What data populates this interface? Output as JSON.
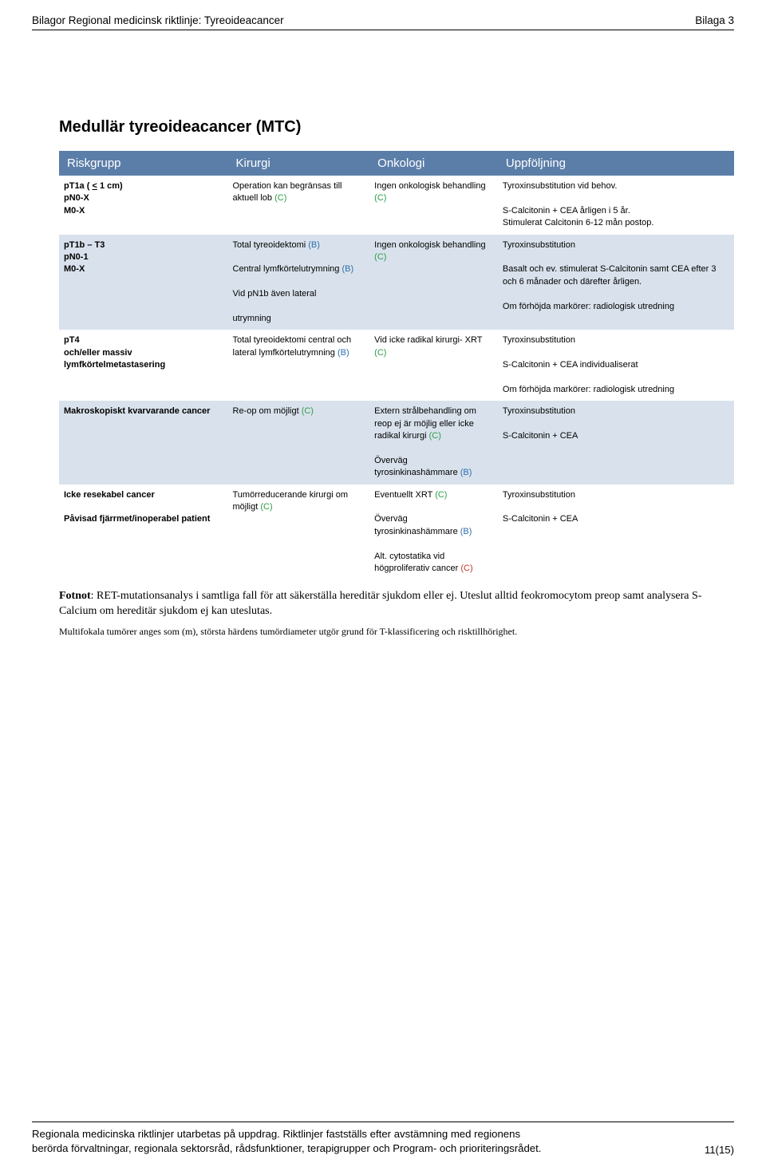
{
  "header": {
    "left": "Bilagor Regional medicinsk riktlinje: Tyreoideacancer",
    "right": "Bilaga 3"
  },
  "title": "Medullär tyreoideacancer (MTC)",
  "columns": [
    "Riskgrupp",
    "Kirurgi",
    "Onkologi",
    "Uppföljning"
  ],
  "rows": [
    {
      "risk": [
        {
          "t": "pT1a ( "
        },
        {
          "t": "<",
          "u": true
        },
        {
          "t": " 1 cm)"
        },
        {
          "br": true
        },
        {
          "t": "pN0-X"
        },
        {
          "br": true
        },
        {
          "t": "M0-X"
        }
      ],
      "kirurgi": [
        {
          "t": "Operation kan begränsas till aktuell lob "
        },
        {
          "t": "(C)",
          "cls": "c-green"
        }
      ],
      "onkologi": [
        {
          "t": "Ingen onkologisk behandling "
        },
        {
          "t": "(C)",
          "cls": "c-green"
        }
      ],
      "uppfoljning": [
        {
          "t": "Tyroxinsubstitution vid behov."
        },
        {
          "br": true
        },
        {
          "br": true
        },
        {
          "t": "S-Calcitonin + CEA årligen i 5 år."
        },
        {
          "br": true
        },
        {
          "t": "Stimulerat Calcitonin 6-12 mån postop."
        }
      ],
      "alt": false
    },
    {
      "risk": [
        {
          "t": "pT1b – T3"
        },
        {
          "br": true
        },
        {
          "t": "pN0-1"
        },
        {
          "br": true
        },
        {
          "t": "M0-X"
        }
      ],
      "kirurgi": [
        {
          "t": "Total tyreoidektomi "
        },
        {
          "t": "(B)",
          "cls": "c-blue"
        },
        {
          "br": true
        },
        {
          "br": true
        },
        {
          "t": "Central lymfkörtelutrymning "
        },
        {
          "t": "(B)",
          "cls": "c-blue"
        },
        {
          "br": true
        },
        {
          "br": true
        },
        {
          "t": "Vid pN1b även lateral"
        },
        {
          "br": true
        },
        {
          "br": true
        },
        {
          "t": "utrymning"
        }
      ],
      "onkologi": [
        {
          "t": "Ingen onkologisk behandling "
        },
        {
          "t": "(C)",
          "cls": "c-green"
        }
      ],
      "uppfoljning": [
        {
          "t": "Tyroxinsubstitution"
        },
        {
          "br": true
        },
        {
          "br": true
        },
        {
          "t": "Basalt och ev. stimulerat S-Calcitonin samt CEA efter 3 och 6 månader och därefter årligen."
        },
        {
          "br": true
        },
        {
          "br": true
        },
        {
          "t": "Om förhöjda markörer: radiologisk utredning"
        }
      ],
      "alt": true
    },
    {
      "risk": [
        {
          "t": "pT4"
        },
        {
          "br": true
        },
        {
          "t": "och/eller massiv lymfkörtelmetastasering"
        }
      ],
      "kirurgi": [
        {
          "t": "Total tyreoidektomi central och lateral lymfkörtelutrymning "
        },
        {
          "t": "(B)",
          "cls": "c-blue"
        }
      ],
      "onkologi": [
        {
          "t": "Vid icke radikal kirurgi- XRT "
        },
        {
          "t": "(C)",
          "cls": "c-green"
        }
      ],
      "uppfoljning": [
        {
          "t": "Tyroxinsubstitution"
        },
        {
          "br": true
        },
        {
          "br": true
        },
        {
          "t": "S-Calcitonin + CEA individualiserat"
        },
        {
          "br": true
        },
        {
          "br": true
        },
        {
          "t": "Om förhöjda markörer: radiologisk utredning"
        }
      ],
      "alt": false
    },
    {
      "risk": [
        {
          "t": "Makroskopiskt kvarvarande cancer"
        }
      ],
      "kirurgi": [
        {
          "t": "Re-op om möjligt "
        },
        {
          "t": "(C)",
          "cls": "c-green"
        }
      ],
      "onkologi": [
        {
          "t": "Extern strålbehandling om reop ej är möjlig eller icke radikal kirurgi "
        },
        {
          "t": "(C)",
          "cls": "c-green"
        },
        {
          "br": true
        },
        {
          "br": true
        },
        {
          "t": "Överväg tyrosinkinashämmare "
        },
        {
          "t": "(B)",
          "cls": "c-blue"
        }
      ],
      "uppfoljning": [
        {
          "t": "Tyroxinsubstitution"
        },
        {
          "br": true
        },
        {
          "br": true
        },
        {
          "t": "S-Calcitonin + CEA"
        }
      ],
      "alt": true
    },
    {
      "risk": [
        {
          "t": "Icke resekabel cancer"
        },
        {
          "br": true
        },
        {
          "br": true
        },
        {
          "t": "Påvisad fjärrmet/inoperabel patient"
        }
      ],
      "kirurgi": [
        {
          "t": "Tumörreducerande kirurgi om möjligt "
        },
        {
          "t": "(C)",
          "cls": "c-green"
        }
      ],
      "onkologi": [
        {
          "t": "Eventuellt XRT "
        },
        {
          "t": "(C)",
          "cls": "c-green"
        },
        {
          "br": true
        },
        {
          "br": true
        },
        {
          "t": "Överväg tyrosinkinashämmare "
        },
        {
          "t": "(B)",
          "cls": "c-blue"
        },
        {
          "br": true
        },
        {
          "br": true
        },
        {
          "t": "Alt. cytostatika vid högproliferativ cancer "
        },
        {
          "t": "(C)",
          "cls": "c-red"
        }
      ],
      "uppfoljning": [
        {
          "t": "Tyroxinsubstitution"
        },
        {
          "br": true
        },
        {
          "br": true
        },
        {
          "t": "S-Calcitonin + CEA"
        }
      ],
      "alt": false
    }
  ],
  "footnote1_label": "Fotnot",
  "footnote1_rest": ": RET-mutationsanalys i samtliga fall för att säkerställa hereditär sjukdom eller ej. Uteslut alltid feokromocytom preop samt analysera S-Calcium om hereditär sjukdom ej kan uteslutas.",
  "footnote2": "Multifokala tumörer anges som (m), största härdens tumördiameter utgör grund för T-klassificering och risktillhörighet.",
  "footer": {
    "line1": "Regionala medicinska riktlinjer utarbetas på uppdrag. Riktlinjer fastställs efter avstämning med regionens",
    "line2": "berörda förvaltningar, regionala sektorsråd, rådsfunktioner, terapigrupper och Program- och prioriteringsrådet.",
    "page": "11(15)"
  },
  "colors": {
    "header_bg": "#5b7ea8",
    "header_fg": "#ffffff",
    "alt_row_bg": "#d9e2ec",
    "green": "#2e9d4a",
    "blue": "#2f6fae",
    "red": "#c0392b"
  }
}
